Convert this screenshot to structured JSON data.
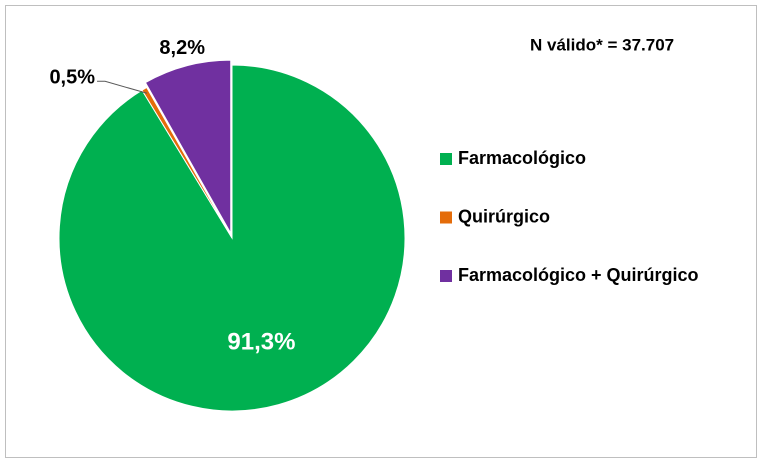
{
  "chart_data": {
    "type": "pie",
    "annotation": "N válido* = 37.707",
    "categories": [
      "Farmacológico",
      "Quirúrgico",
      "Farmacológico + Quirúrgico"
    ],
    "values": [
      91.3,
      0.5,
      8.2
    ],
    "value_labels": [
      "91,3%",
      "0,5%",
      "8,2%"
    ],
    "colors": [
      "#00b050",
      "#e46c0a",
      "#7030a0"
    ],
    "legend": "right"
  }
}
